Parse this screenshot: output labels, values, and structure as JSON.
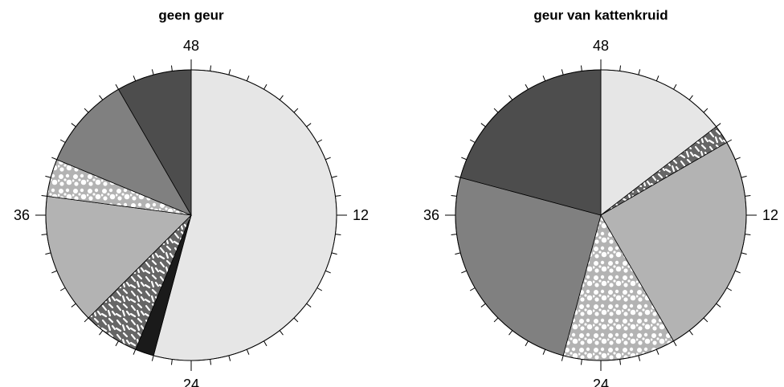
{
  "chart_data": [
    {
      "type": "pie",
      "title": "geen geur",
      "values": [
        26,
        1,
        3,
        7,
        2,
        5,
        4
      ],
      "colors": [
        "#e6e6e6",
        "#1a1a1a",
        "#666666",
        "#b3b3b3",
        "#b3b3b3",
        "#808080",
        "#4d4d4d"
      ],
      "patterns": [
        null,
        null,
        "dashes",
        null,
        "dots",
        null,
        null
      ],
      "lim": [
        0,
        48
      ],
      "ticks": [
        12,
        24,
        36,
        48
      ],
      "minor_tick_step": 1
    },
    {
      "type": "pie",
      "title": "geur van kattenkruid",
      "values": [
        7,
        1,
        12,
        6,
        12,
        10
      ],
      "colors": [
        "#e6e6e6",
        "#666666",
        "#b3b3b3",
        "#b3b3b3",
        "#808080",
        "#4d4d4d"
      ],
      "patterns": [
        null,
        "dashes",
        null,
        "dots",
        null,
        null
      ],
      "lim": [
        0,
        48
      ],
      "ticks": [
        12,
        24,
        36,
        48
      ],
      "minor_tick_step": 1
    }
  ]
}
